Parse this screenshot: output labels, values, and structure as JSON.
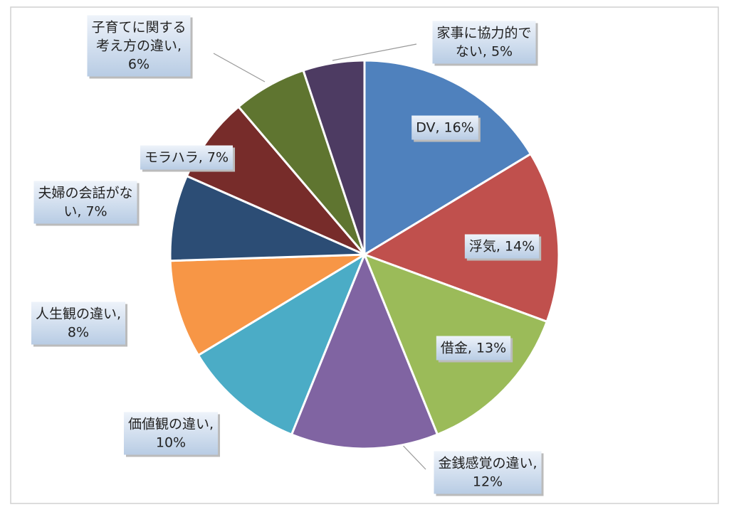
{
  "chart_data": {
    "type": "pie",
    "values": [
      16,
      14,
      13,
      12,
      10,
      8,
      7,
      7,
      6,
      5
    ],
    "colors": [
      "#4f81bd",
      "#c0504d",
      "#9bbb59",
      "#8064a2",
      "#4bacc6",
      "#f79646",
      "#2c4d75",
      "#772c2a",
      "#5f7530",
      "#4d3b62"
    ],
    "value_labels": [
      [
        "DV, 16%"
      ],
      [
        "浮気, 14%"
      ],
      [
        "借金, 13%"
      ],
      [
        "金銭感覚の違い,",
        "12%"
      ],
      [
        "価値観の違い,",
        "10%"
      ],
      [
        "人生観の違い,",
        "8%"
      ],
      [
        "夫婦の会話がな",
        "い, 7%"
      ],
      [
        "モラハラ, 7%"
      ],
      [
        "子育てに関する",
        "考え方の違い,",
        "6%"
      ],
      [
        "家事に協力的で",
        "ない, 5%"
      ]
    ]
  }
}
